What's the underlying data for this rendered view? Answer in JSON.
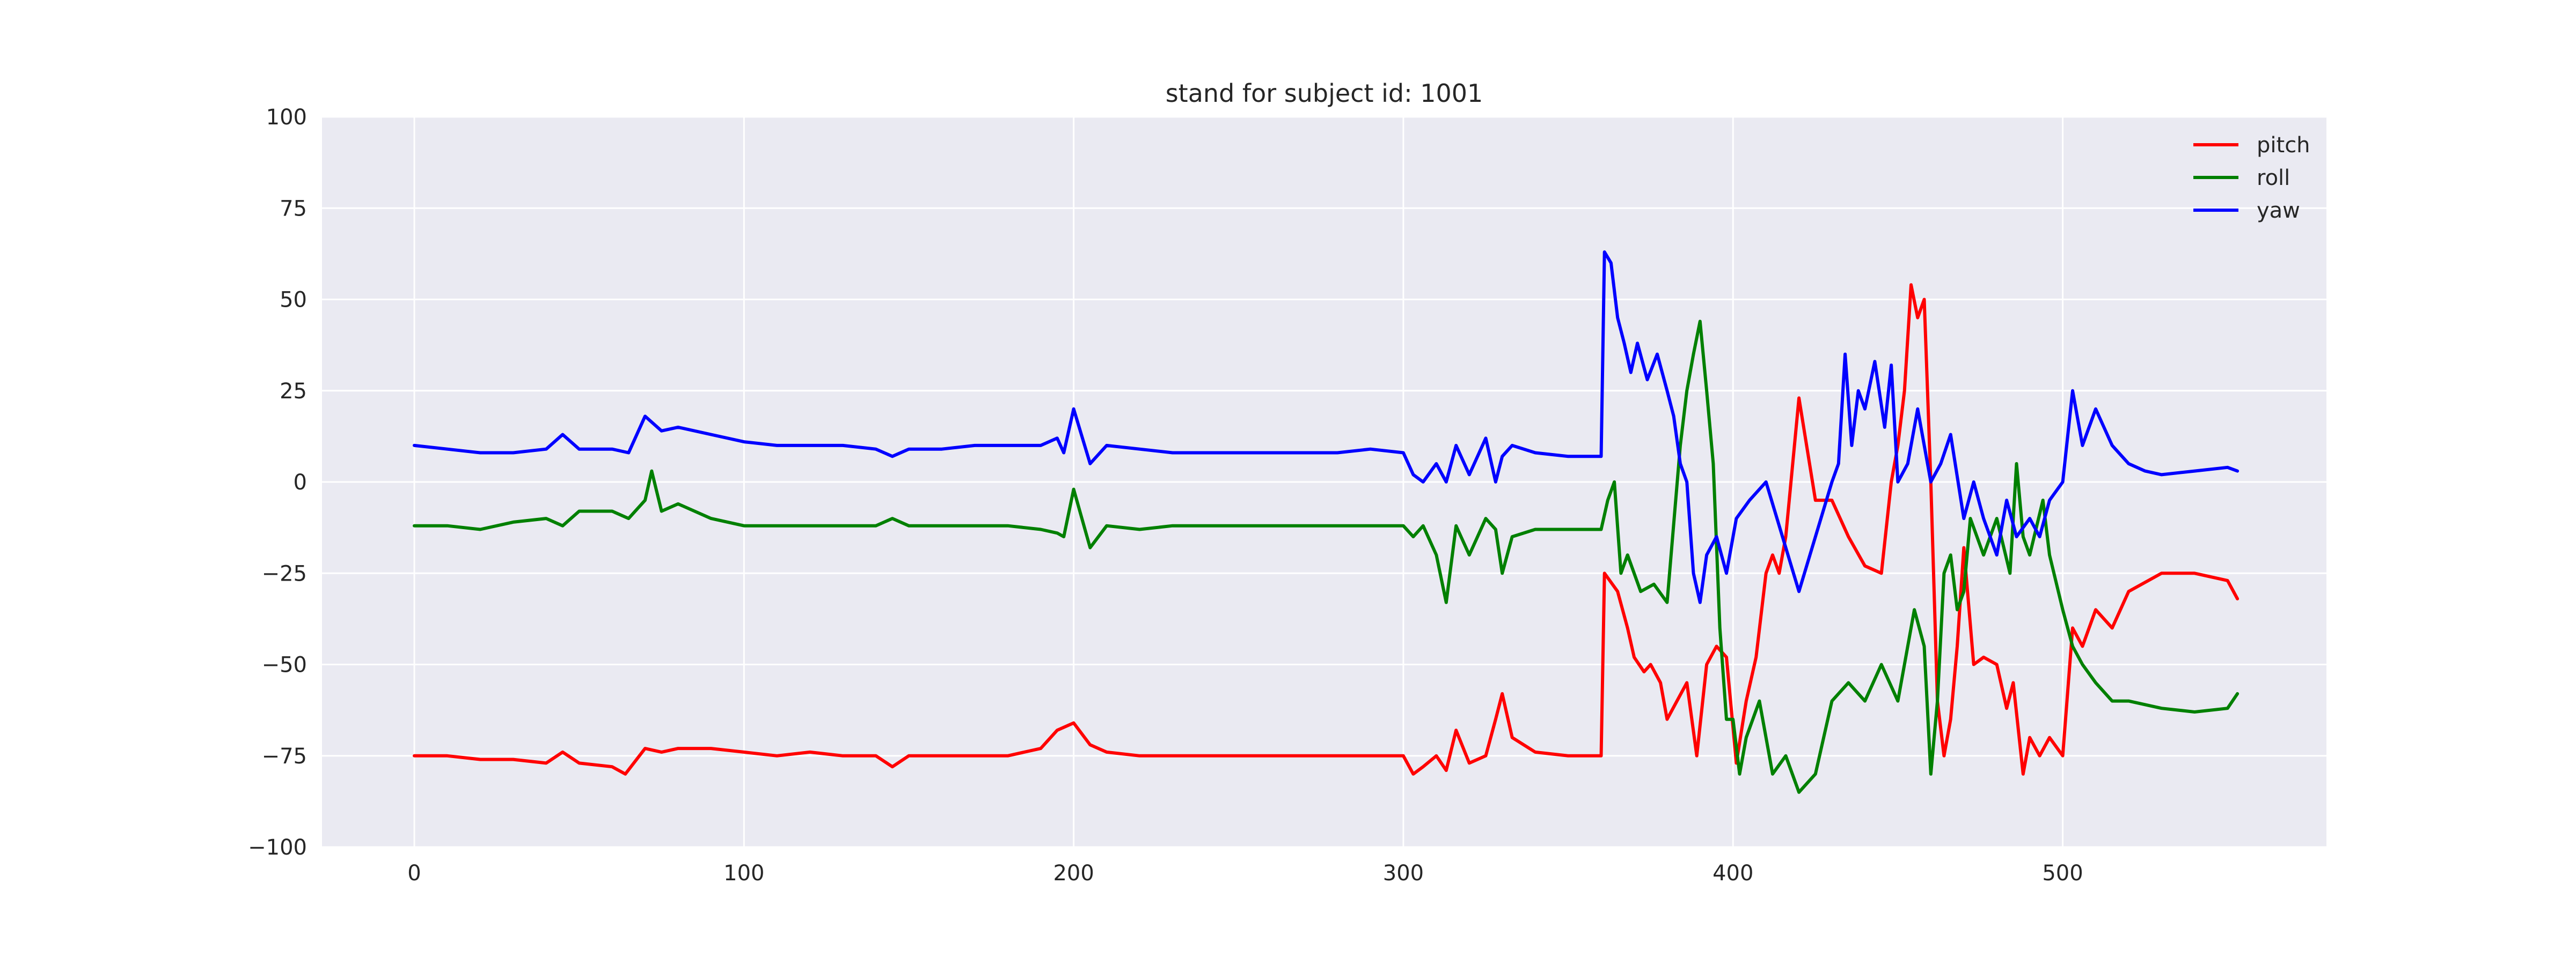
{
  "chart_data": {
    "type": "line",
    "title": "stand for subject id: 1001",
    "xlabel": "",
    "ylabel": "",
    "xlim": [
      -28,
      580
    ],
    "ylim": [
      -100,
      100
    ],
    "xticks": [
      0,
      100,
      200,
      300,
      400,
      500
    ],
    "yticks": [
      100,
      75,
      50,
      25,
      0,
      -25,
      -50,
      -75,
      -100
    ],
    "ytick_labels": [
      "100",
      "75",
      "50",
      "25",
      "0",
      "−25",
      "−50",
      "−75",
      "−100"
    ],
    "grid": true,
    "legend_position": "top-right",
    "background_color": "#eaeaf2",
    "grid_color": "#ffffff",
    "series": [
      {
        "name": "pitch",
        "color": "#ff0000",
        "x": [
          0,
          10,
          20,
          30,
          40,
          45,
          50,
          60,
          64,
          70,
          75,
          80,
          90,
          100,
          110,
          120,
          130,
          140,
          145,
          150,
          160,
          170,
          180,
          190,
          195,
          200,
          205,
          210,
          220,
          230,
          240,
          250,
          260,
          270,
          280,
          290,
          300,
          303,
          306,
          310,
          313,
          316,
          320,
          325,
          328,
          330,
          333,
          340,
          350,
          360,
          361,
          365,
          368,
          370,
          373,
          375,
          378,
          380,
          383,
          386,
          389,
          392,
          395,
          398,
          401,
          404,
          407,
          410,
          412,
          414,
          416,
          420,
          425,
          430,
          435,
          440,
          445,
          448,
          450,
          452,
          454,
          456,
          458,
          460,
          462,
          464,
          466,
          468,
          470,
          473,
          476,
          480,
          483,
          485,
          488,
          490,
          493,
          496,
          500,
          503,
          506,
          510,
          515,
          520,
          530,
          540,
          550,
          553
        ],
        "values": [
          -75,
          -75,
          -76,
          -76,
          -77,
          -74,
          -77,
          -78,
          -80,
          -73,
          -74,
          -73,
          -73,
          -74,
          -75,
          -74,
          -75,
          -75,
          -78,
          -75,
          -75,
          -75,
          -75,
          -73,
          -68,
          -66,
          -72,
          -74,
          -75,
          -75,
          -75,
          -75,
          -75,
          -75,
          -75,
          -75,
          -75,
          -80,
          -78,
          -75,
          -79,
          -68,
          -77,
          -75,
          -65,
          -58,
          -70,
          -74,
          -75,
          -75,
          -25,
          -30,
          -40,
          -48,
          -52,
          -50,
          -55,
          -65,
          -60,
          -55,
          -75,
          -50,
          -45,
          -48,
          -77,
          -60,
          -48,
          -25,
          -20,
          -25,
          -15,
          23,
          -5,
          -5,
          -15,
          -23,
          -25,
          0,
          10,
          25,
          54,
          45,
          50,
          0,
          -60,
          -75,
          -65,
          -45,
          -18,
          -50,
          -48,
          -50,
          -62,
          -55,
          -80,
          -70,
          -75,
          -70,
          -75,
          -40,
          -45,
          -35,
          -40,
          -30,
          -25,
          -25,
          -27,
          -32
        ]
      },
      {
        "name": "roll",
        "color": "#008000",
        "x": [
          0,
          10,
          20,
          30,
          40,
          45,
          50,
          60,
          65,
          70,
          72,
          75,
          80,
          90,
          100,
          110,
          120,
          130,
          140,
          145,
          150,
          160,
          170,
          180,
          190,
          195,
          197,
          200,
          205,
          210,
          220,
          230,
          240,
          250,
          260,
          270,
          280,
          290,
          300,
          303,
          306,
          310,
          313,
          316,
          320,
          325,
          328,
          330,
          333,
          340,
          350,
          360,
          362,
          364,
          366,
          368,
          372,
          376,
          380,
          384,
          386,
          388,
          390,
          392,
          394,
          396,
          398,
          400,
          402,
          404,
          408,
          412,
          416,
          420,
          425,
          430,
          435,
          440,
          445,
          450,
          455,
          458,
          460,
          462,
          464,
          466,
          468,
          470,
          472,
          476,
          480,
          484,
          486,
          488,
          490,
          494,
          496,
          500,
          503,
          506,
          510,
          515,
          520,
          530,
          540,
          550,
          553
        ],
        "values": [
          -12,
          -12,
          -13,
          -11,
          -10,
          -12,
          -8,
          -8,
          -10,
          -5,
          3,
          -8,
          -6,
          -10,
          -12,
          -12,
          -12,
          -12,
          -12,
          -10,
          -12,
          -12,
          -12,
          -12,
          -13,
          -14,
          -15,
          -2,
          -18,
          -12,
          -13,
          -12,
          -12,
          -12,
          -12,
          -12,
          -12,
          -12,
          -12,
          -15,
          -12,
          -20,
          -33,
          -12,
          -20,
          -10,
          -13,
          -25,
          -15,
          -13,
          -13,
          -13,
          -5,
          0,
          -25,
          -20,
          -30,
          -28,
          -33,
          10,
          25,
          35,
          44,
          25,
          5,
          -40,
          -65,
          -65,
          -80,
          -70,
          -60,
          -80,
          -75,
          -85,
          -80,
          -60,
          -55,
          -60,
          -50,
          -60,
          -35,
          -45,
          -80,
          -60,
          -25,
          -20,
          -35,
          -30,
          -10,
          -20,
          -10,
          -25,
          5,
          -15,
          -20,
          -5,
          -20,
          -35,
          -45,
          -50,
          -55,
          -60,
          -60,
          -62,
          -63,
          -62,
          -58
        ]
      },
      {
        "name": "yaw",
        "color": "#0000ff",
        "x": [
          0,
          10,
          20,
          30,
          40,
          45,
          50,
          60,
          65,
          70,
          75,
          80,
          90,
          100,
          110,
          120,
          130,
          140,
          145,
          150,
          160,
          170,
          180,
          190,
          195,
          197,
          200,
          205,
          210,
          220,
          230,
          240,
          250,
          260,
          270,
          280,
          290,
          300,
          303,
          306,
          310,
          313,
          316,
          320,
          325,
          328,
          330,
          333,
          340,
          350,
          360,
          361,
          363,
          365,
          367,
          369,
          371,
          374,
          377,
          380,
          382,
          384,
          386,
          388,
          390,
          392,
          395,
          398,
          401,
          405,
          410,
          415,
          420,
          425,
          430,
          432,
          434,
          436,
          438,
          440,
          443,
          446,
          448,
          450,
          453,
          456,
          460,
          463,
          466,
          470,
          473,
          476,
          480,
          483,
          486,
          490,
          493,
          496,
          500,
          503,
          506,
          510,
          515,
          520,
          525,
          530,
          540,
          550,
          553
        ],
        "values": [
          10,
          9,
          8,
          8,
          9,
          13,
          9,
          9,
          8,
          18,
          14,
          15,
          13,
          11,
          10,
          10,
          10,
          9,
          7,
          9,
          9,
          10,
          10,
          10,
          12,
          8,
          20,
          5,
          10,
          9,
          8,
          8,
          8,
          8,
          8,
          8,
          9,
          8,
          2,
          0,
          5,
          0,
          10,
          2,
          12,
          0,
          7,
          10,
          8,
          7,
          7,
          63,
          60,
          45,
          38,
          30,
          38,
          28,
          35,
          25,
          18,
          5,
          0,
          -25,
          -33,
          -20,
          -15,
          -25,
          -10,
          -5,
          0,
          -15,
          -30,
          -15,
          0,
          5,
          35,
          10,
          25,
          20,
          33,
          15,
          32,
          0,
          5,
          20,
          0,
          5,
          13,
          -10,
          0,
          -10,
          -20,
          -5,
          -15,
          -10,
          -15,
          -5,
          0,
          25,
          10,
          20,
          10,
          5,
          3,
          2,
          3,
          4,
          3
        ]
      }
    ]
  }
}
